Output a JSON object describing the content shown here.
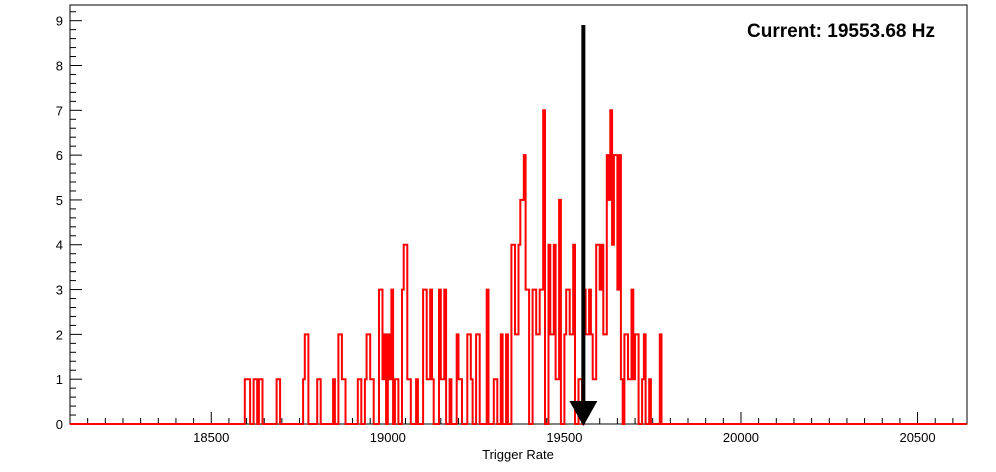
{
  "chart_data": {
    "type": "histogram",
    "title": "",
    "xlabel": "Trigger Rate",
    "ylabel": "",
    "xlim": [
      18100,
      20640
    ],
    "ylim": [
      0,
      9.35
    ],
    "x_ticks": [
      18500,
      19000,
      19500,
      20000,
      20500
    ],
    "y_ticks": [
      0,
      1,
      2,
      3,
      4,
      5,
      6,
      7,
      8,
      9
    ],
    "grid": false,
    "legend": "none",
    "series": [
      {
        "color": "#ff0000",
        "bins": [
          [
            18595,
            1
          ],
          [
            18610,
            0
          ],
          [
            18620,
            1
          ],
          [
            18630,
            0
          ],
          [
            18635,
            1
          ],
          [
            18645,
            0
          ],
          [
            18685,
            1
          ],
          [
            18695,
            0
          ],
          [
            18760,
            1
          ],
          [
            18765,
            2
          ],
          [
            18775,
            0
          ],
          [
            18800,
            1
          ],
          [
            18810,
            0
          ],
          [
            18845,
            1
          ],
          [
            18850,
            0
          ],
          [
            18860,
            2
          ],
          [
            18870,
            1
          ],
          [
            18880,
            0
          ],
          [
            18915,
            1
          ],
          [
            18925,
            0
          ],
          [
            18935,
            1
          ],
          [
            18940,
            2
          ],
          [
            18950,
            1
          ],
          [
            18960,
            0
          ],
          [
            18975,
            3
          ],
          [
            18985,
            1
          ],
          [
            18990,
            2
          ],
          [
            18995,
            0
          ],
          [
            19000,
            2
          ],
          [
            19005,
            1
          ],
          [
            19010,
            3
          ],
          [
            19015,
            0
          ],
          [
            19020,
            1
          ],
          [
            19030,
            0
          ],
          [
            19040,
            3
          ],
          [
            19045,
            4
          ],
          [
            19055,
            1
          ],
          [
            19065,
            0
          ],
          [
            19080,
            1
          ],
          [
            19085,
            0
          ],
          [
            19100,
            3
          ],
          [
            19110,
            1
          ],
          [
            19120,
            3
          ],
          [
            19125,
            1
          ],
          [
            19130,
            0
          ],
          [
            19145,
            3
          ],
          [
            19150,
            1
          ],
          [
            19160,
            3
          ],
          [
            19165,
            0
          ],
          [
            19175,
            1
          ],
          [
            19180,
            0
          ],
          [
            19195,
            2
          ],
          [
            19200,
            1
          ],
          [
            19210,
            0
          ],
          [
            19225,
            2
          ],
          [
            19235,
            1
          ],
          [
            19240,
            0
          ],
          [
            19250,
            2
          ],
          [
            19260,
            0
          ],
          [
            19280,
            3
          ],
          [
            19285,
            0
          ],
          [
            19300,
            1
          ],
          [
            19310,
            0
          ],
          [
            19320,
            2
          ],
          [
            19325,
            0
          ],
          [
            19335,
            2
          ],
          [
            19340,
            0
          ],
          [
            19350,
            4
          ],
          [
            19360,
            2
          ],
          [
            19370,
            4
          ],
          [
            19375,
            5
          ],
          [
            19385,
            6
          ],
          [
            19390,
            3
          ],
          [
            19400,
            0
          ],
          [
            19410,
            3
          ],
          [
            19420,
            2
          ],
          [
            19430,
            3
          ],
          [
            19440,
            7
          ],
          [
            19445,
            0
          ],
          [
            19455,
            4
          ],
          [
            19460,
            2
          ],
          [
            19470,
            4
          ],
          [
            19475,
            1
          ],
          [
            19485,
            5
          ],
          [
            19490,
            0
          ],
          [
            19500,
            2
          ],
          [
            19505,
            3
          ],
          [
            19515,
            2
          ],
          [
            19525,
            4
          ],
          [
            19530,
            0
          ],
          [
            19540,
            1
          ],
          [
            19550,
            0
          ],
          [
            19555,
            3
          ],
          [
            19560,
            2
          ],
          [
            19570,
            3
          ],
          [
            19575,
            2
          ],
          [
            19580,
            1
          ],
          [
            19590,
            4
          ],
          [
            19600,
            3
          ],
          [
            19605,
            4
          ],
          [
            19610,
            2
          ],
          [
            19620,
            6
          ],
          [
            19625,
            5
          ],
          [
            19630,
            7
          ],
          [
            19635,
            4
          ],
          [
            19640,
            6
          ],
          [
            19650,
            3
          ],
          [
            19655,
            6
          ],
          [
            19660,
            1
          ],
          [
            19665,
            0
          ],
          [
            19670,
            2
          ],
          [
            19680,
            1
          ],
          [
            19690,
            3
          ],
          [
            19695,
            1
          ],
          [
            19700,
            2
          ],
          [
            19710,
            0
          ],
          [
            19720,
            1
          ],
          [
            19725,
            2
          ],
          [
            19730,
            0
          ],
          [
            19740,
            1
          ],
          [
            19745,
            0
          ],
          [
            19770,
            2
          ],
          [
            19775,
            0
          ]
        ]
      }
    ],
    "annotations": {
      "current_label": "Current: 19553.68 Hz",
      "current_value": 19553.68,
      "arrow_color": "#000000"
    }
  }
}
